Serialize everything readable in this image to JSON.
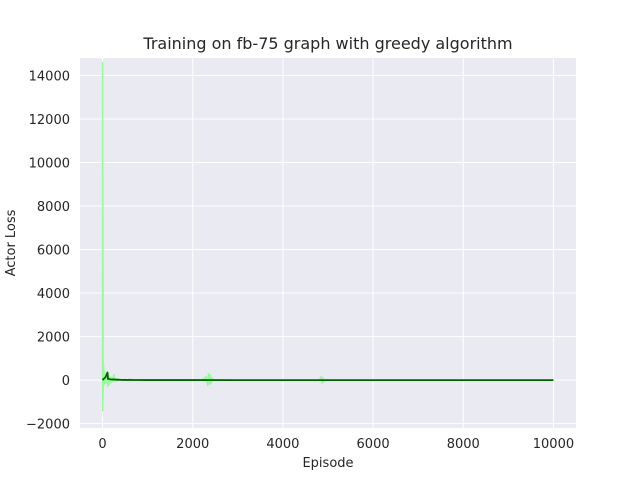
{
  "chart_data": {
    "type": "line",
    "title": "Training on fb-75 graph with greedy algorithm",
    "xlabel": "Episode",
    "ylabel": "Actor Loss",
    "xlim": [
      -500,
      10500
    ],
    "ylim": [
      -2200,
      14800
    ],
    "xticks": [
      0,
      2000,
      4000,
      6000,
      8000,
      10000
    ],
    "yticks": [
      -2000,
      0,
      2000,
      4000,
      6000,
      8000,
      10000,
      12000,
      14000
    ],
    "grid": true,
    "background_color": "#eaeaf2",
    "series": [
      {
        "color": "#98fb98",
        "x": [
          0,
          2,
          4,
          6,
          8,
          10,
          12,
          15,
          18,
          22,
          26,
          30,
          35,
          40,
          50,
          60,
          70,
          80,
          90,
          100,
          115,
          130,
          150,
          170,
          190,
          210,
          230,
          250,
          275,
          300,
          325,
          350,
          400,
          450,
          500,
          550,
          600,
          650,
          700,
          800,
          900,
          1000,
          1200,
          1400,
          1600,
          1800,
          2000,
          2200,
          2300,
          2330,
          2350,
          2370,
          2390,
          2410,
          2430,
          2450,
          2500,
          2700,
          3000,
          3500,
          4000,
          4500,
          4800,
          4850,
          4870,
          4890,
          4910,
          4950,
          5200,
          6000,
          7000,
          8000,
          9000,
          10000
        ],
        "y": [
          0,
          14600,
          -1400,
          9500,
          -900,
          5200,
          -600,
          900,
          -300,
          700,
          -250,
          500,
          -200,
          400,
          -150,
          300,
          -120,
          250,
          -100,
          200,
          -300,
          250,
          -200,
          150,
          -100,
          120,
          -80,
          250,
          -60,
          80,
          -50,
          60,
          40,
          -30,
          30,
          -20,
          50,
          -20,
          15,
          10,
          -10,
          8,
          5,
          -5,
          5,
          3,
          -3,
          5,
          150,
          -250,
          300,
          -200,
          250,
          -150,
          100,
          20,
          5,
          3,
          2,
          3,
          2,
          2,
          3,
          150,
          -150,
          120,
          -80,
          10,
          3,
          2,
          2,
          2,
          1,
          1
        ]
      },
      {
        "color": "#006400",
        "x": [
          0,
          20,
          40,
          60,
          80,
          100,
          110,
          120,
          140,
          160,
          200,
          260,
          320,
          400,
          500,
          700,
          1000,
          1500,
          2000,
          3000,
          4000,
          5000,
          6000,
          7000,
          8000,
          9000,
          10000
        ],
        "y": [
          0,
          50,
          80,
          120,
          200,
          300,
          350,
          50,
          60,
          40,
          30,
          25,
          20,
          10,
          8,
          5,
          3,
          2,
          2,
          1,
          1,
          1,
          1,
          1,
          1,
          1,
          1
        ]
      }
    ]
  }
}
